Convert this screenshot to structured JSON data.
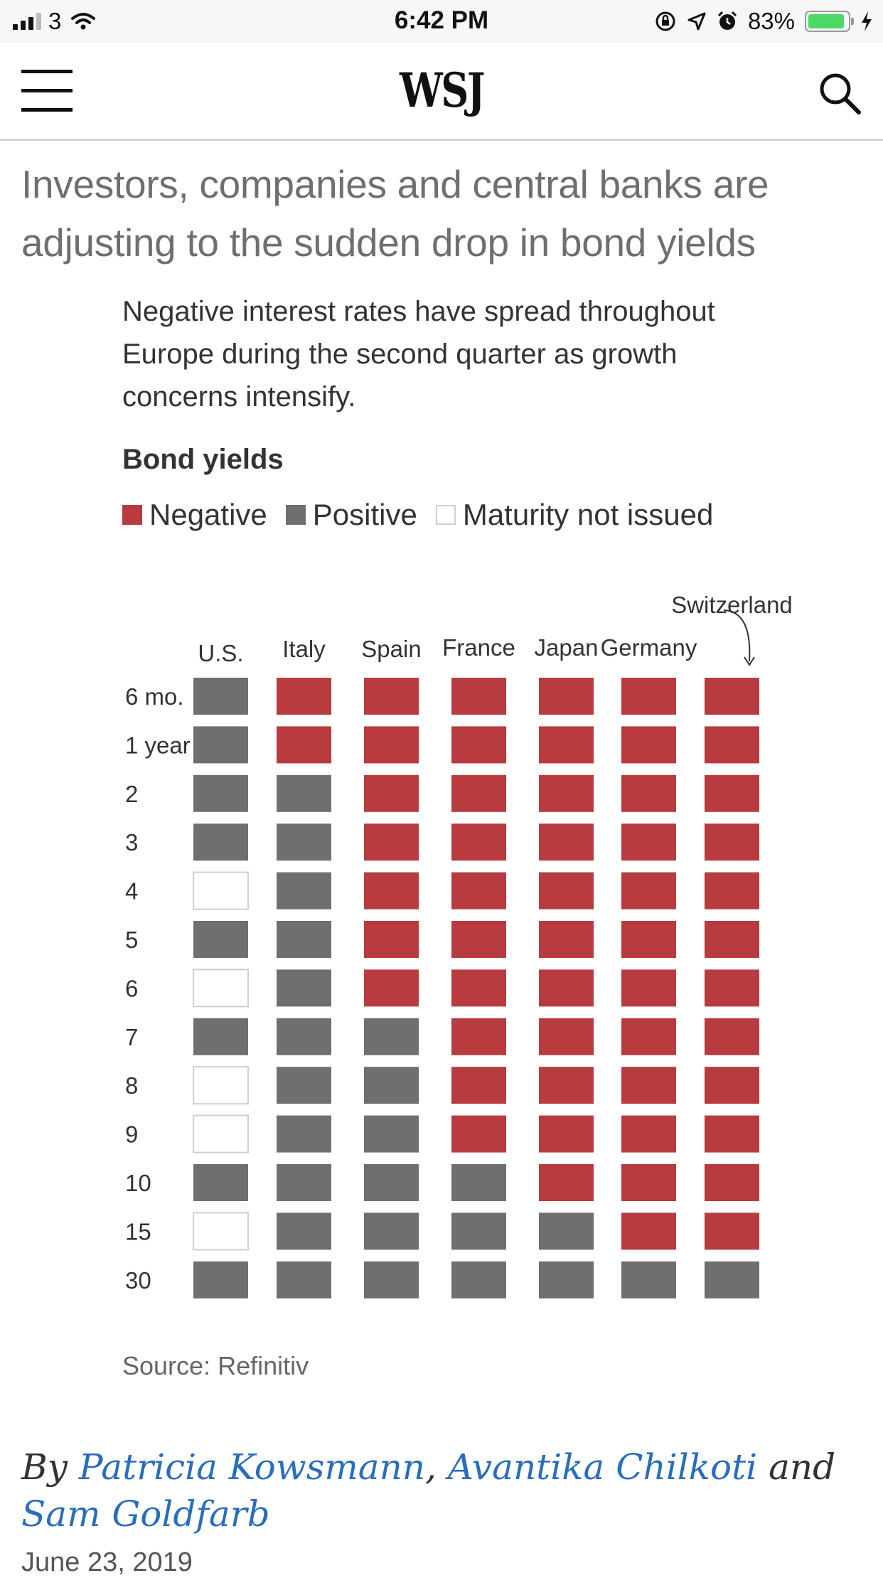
{
  "status_bar": {
    "carrier": "3",
    "time": "6:42 PM",
    "battery": "83%"
  },
  "header": {
    "logo": "WSJ"
  },
  "article": {
    "headline": "Investors, companies and central banks are adjusting to the sudden drop in bond yields",
    "dek": "Negative interest rates have spread throughout Europe during the second quarter as growth concerns intensify.",
    "chart_title": "Bond yields",
    "legend": {
      "negative": "Negative",
      "positive": "Positive",
      "not_issued": "Maturity not issued"
    },
    "source": "Source: Refinitiv",
    "byline": {
      "prefix": "By",
      "author1": "Patricia Kowsmann",
      "sep1": ",",
      "author2": "Avantika Chilkoti",
      "and": "and",
      "author3": "Sam Goldfarb"
    },
    "date": "June 23, 2019"
  },
  "colors": {
    "negative": "#b83b3f",
    "positive": "#6f6f6f",
    "not_issued": "#ffffff"
  },
  "chart_data": {
    "type": "heatmap",
    "title": "Bond yields",
    "columns": [
      "U.S.",
      "Italy",
      "Spain",
      "France",
      "Japan",
      "Germany",
      "Switzerland"
    ],
    "rows": [
      "6 mo.",
      "1 year",
      "2",
      "3",
      "4",
      "5",
      "6",
      "7",
      "8",
      "9",
      "10",
      "15",
      "30"
    ],
    "categories": {
      "N": "Negative",
      "P": "Positive",
      "X": "Maturity not issued"
    },
    "cells": [
      [
        "P",
        "N",
        "N",
        "N",
        "N",
        "N",
        "N"
      ],
      [
        "P",
        "N",
        "N",
        "N",
        "N",
        "N",
        "N"
      ],
      [
        "P",
        "P",
        "N",
        "N",
        "N",
        "N",
        "N"
      ],
      [
        "P",
        "P",
        "N",
        "N",
        "N",
        "N",
        "N"
      ],
      [
        "X",
        "P",
        "N",
        "N",
        "N",
        "N",
        "N"
      ],
      [
        "P",
        "P",
        "N",
        "N",
        "N",
        "N",
        "N"
      ],
      [
        "X",
        "P",
        "N",
        "N",
        "N",
        "N",
        "N"
      ],
      [
        "P",
        "P",
        "P",
        "N",
        "N",
        "N",
        "N"
      ],
      [
        "X",
        "P",
        "P",
        "N",
        "N",
        "N",
        "N"
      ],
      [
        "X",
        "P",
        "P",
        "N",
        "N",
        "N",
        "N"
      ],
      [
        "P",
        "P",
        "P",
        "P",
        "N",
        "N",
        "N"
      ],
      [
        "X",
        "P",
        "P",
        "P",
        "P",
        "N",
        "N"
      ],
      [
        "P",
        "P",
        "P",
        "P",
        "P",
        "P",
        "P"
      ]
    ]
  }
}
